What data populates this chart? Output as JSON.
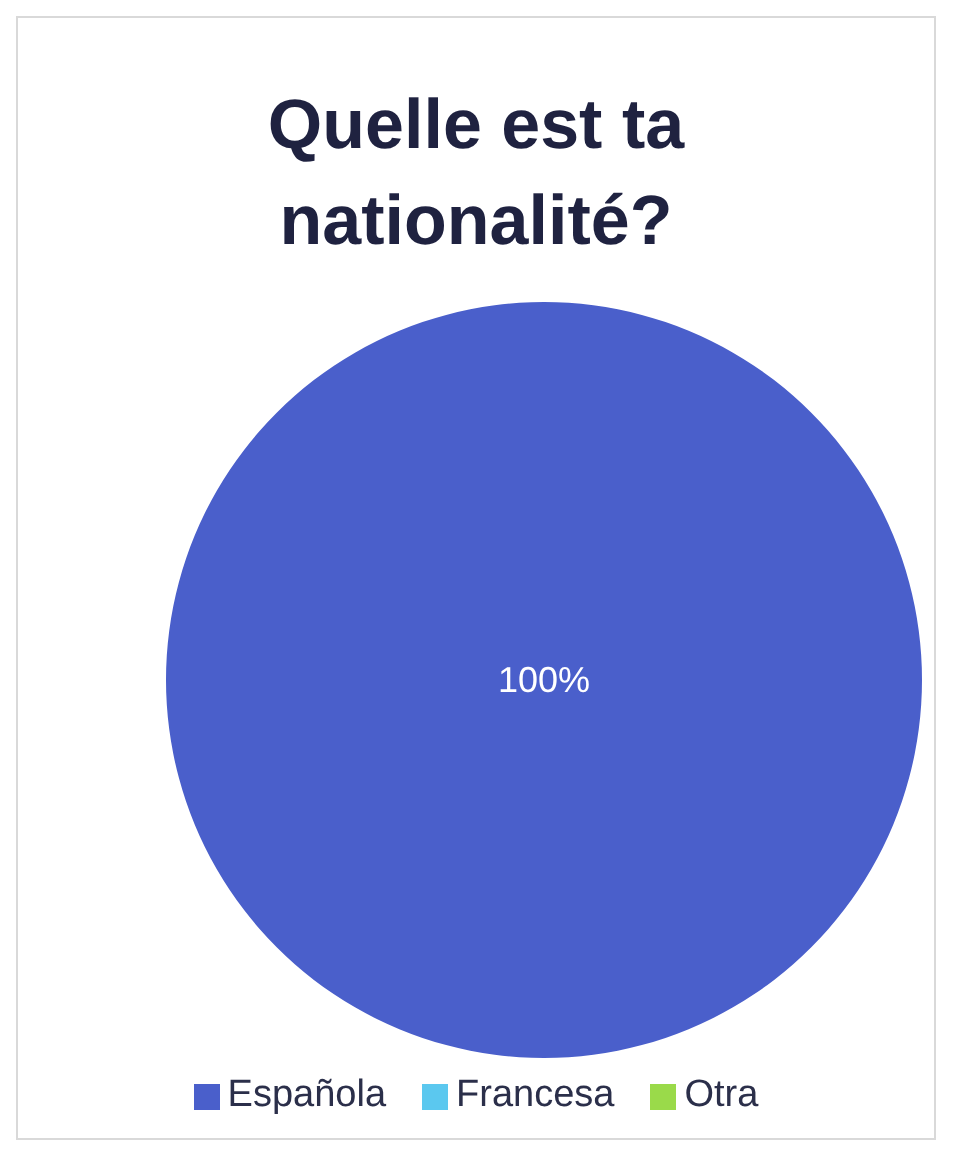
{
  "chart_data": {
    "type": "pie",
    "title": "Quelle est ta nationalité?",
    "categories": [
      "Española",
      "Francesa",
      "Otra"
    ],
    "values": [
      100,
      0,
      0
    ],
    "colors": [
      "#4a5fcb",
      "#5bc8ef",
      "#9ada4a"
    ],
    "value_labels": [
      "100%",
      null,
      null
    ],
    "legend": "bottom"
  }
}
